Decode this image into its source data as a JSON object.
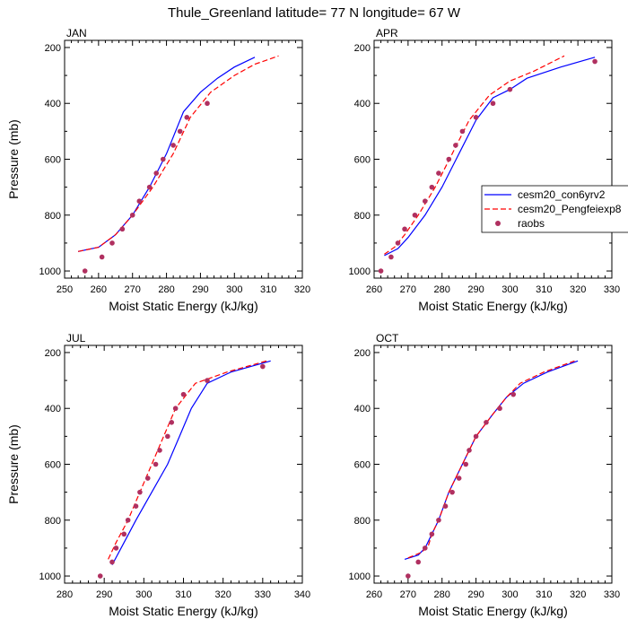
{
  "figure": {
    "title": "Thule_Greenland  latitude= 77 N longitude= 67 W",
    "xlabel": "Moist Static Energy (kJ/kg)",
    "ylabel": "Pressure (mb)"
  },
  "legend": {
    "placement": "right of APR panel",
    "entries": [
      {
        "label": "cesm20_con6yrv2",
        "style": "solid",
        "color": "#0000ff"
      },
      {
        "label": "cesm20_Pengfeiexp8",
        "style": "dashed",
        "color": "#ff0000"
      },
      {
        "label": "raobs",
        "style": "marker",
        "color": "#b03060"
      }
    ]
  },
  "colors": {
    "model1": "#0000ff",
    "model2": "#ff0000",
    "obs": "#b03060"
  },
  "chart_data": [
    {
      "type": "line",
      "panel_label": "JAN",
      "xlim": [
        250,
        320
      ],
      "xticks": [
        250,
        260,
        270,
        280,
        290,
        300,
        310,
        320
      ],
      "ylim": [
        1000,
        200
      ],
      "yticks": [
        200,
        400,
        600,
        800,
        1000
      ],
      "y_reversed": true,
      "series": [
        {
          "name": "cesm20_con6yrv2",
          "style": "solid",
          "points": [
            [
              254,
              930
            ],
            [
              260,
              915
            ],
            [
              265,
              870
            ],
            [
              270,
              800
            ],
            [
              275,
              700
            ],
            [
              280,
              580
            ],
            [
              285,
              430
            ],
            [
              290,
              360
            ],
            [
              295,
              310
            ],
            [
              300,
              270
            ],
            [
              306,
              235
            ]
          ]
        },
        {
          "name": "cesm20_Pengfeiexp8",
          "style": "dashed",
          "points": [
            [
              254,
              930
            ],
            [
              260,
              915
            ],
            [
              265,
              870
            ],
            [
              270,
              800
            ],
            [
              276,
              700
            ],
            [
              282,
              580
            ],
            [
              287,
              450
            ],
            [
              293,
              360
            ],
            [
              300,
              300
            ],
            [
              306,
              260
            ],
            [
              313,
              230
            ]
          ]
        },
        {
          "name": "raobs",
          "style": "marker",
          "points": [
            [
              256,
              1000
            ],
            [
              261,
              950
            ],
            [
              264,
              900
            ],
            [
              267,
              850
            ],
            [
              270,
              800
            ],
            [
              272,
              750
            ],
            [
              275,
              700
            ],
            [
              277,
              650
            ],
            [
              279,
              600
            ],
            [
              282,
              550
            ],
            [
              284,
              500
            ],
            [
              286,
              450
            ],
            [
              292,
              400
            ]
          ]
        }
      ]
    },
    {
      "type": "line",
      "panel_label": "APR",
      "xlim": [
        260,
        330
      ],
      "xticks": [
        260,
        270,
        280,
        290,
        300,
        310,
        320,
        330
      ],
      "ylim": [
        1000,
        200
      ],
      "yticks": [
        200,
        400,
        600,
        800,
        1000
      ],
      "y_reversed": true,
      "series": [
        {
          "name": "cesm20_con6yrv2",
          "style": "solid",
          "points": [
            [
              263,
              945
            ],
            [
              267,
              920
            ],
            [
              270,
              880
            ],
            [
              275,
              800
            ],
            [
              280,
              700
            ],
            [
              285,
              580
            ],
            [
              290,
              460
            ],
            [
              295,
              380
            ],
            [
              300,
              350
            ],
            [
              305,
              310
            ],
            [
              315,
              270
            ],
            [
              325,
              235
            ]
          ]
        },
        {
          "name": "cesm20_Pengfeiexp8",
          "style": "dashed",
          "points": [
            [
              263,
              940
            ],
            [
              266,
              915
            ],
            [
              269,
              870
            ],
            [
              273,
              800
            ],
            [
              278,
              700
            ],
            [
              283,
              580
            ],
            [
              288,
              460
            ],
            [
              294,
              370
            ],
            [
              300,
              320
            ],
            [
              307,
              285
            ],
            [
              316,
              230
            ]
          ]
        },
        {
          "name": "raobs",
          "style": "marker",
          "points": [
            [
              262,
              1000
            ],
            [
              265,
              950
            ],
            [
              267,
              900
            ],
            [
              269,
              850
            ],
            [
              272,
              800
            ],
            [
              275,
              750
            ],
            [
              277,
              700
            ],
            [
              279,
              650
            ],
            [
              282,
              600
            ],
            [
              284,
              550
            ],
            [
              286,
              500
            ],
            [
              290,
              450
            ],
            [
              295,
              400
            ],
            [
              300,
              350
            ],
            [
              325,
              250
            ]
          ]
        }
      ]
    },
    {
      "type": "line",
      "panel_label": "JUL",
      "xlim": [
        280,
        340
      ],
      "xticks": [
        280,
        290,
        300,
        310,
        320,
        330,
        340
      ],
      "ylim": [
        1000,
        200
      ],
      "yticks": [
        200,
        400,
        600,
        800,
        1000
      ],
      "y_reversed": true,
      "series": [
        {
          "name": "cesm20_con6yrv2",
          "style": "solid",
          "points": [
            [
              292,
              960
            ],
            [
              295,
              880
            ],
            [
              298,
              800
            ],
            [
              302,
              700
            ],
            [
              306,
              600
            ],
            [
              309,
              500
            ],
            [
              312,
              400
            ],
            [
              316,
              310
            ],
            [
              322,
              270
            ],
            [
              332,
              230
            ]
          ]
        },
        {
          "name": "cesm20_Pengfeiexp8",
          "style": "dashed",
          "points": [
            [
              291,
              940
            ],
            [
              293,
              880
            ],
            [
              296,
              800
            ],
            [
              299,
              700
            ],
            [
              302,
              600
            ],
            [
              305,
              500
            ],
            [
              308,
              400
            ],
            [
              313,
              310
            ],
            [
              321,
              270
            ],
            [
              331,
              230
            ]
          ]
        },
        {
          "name": "raobs",
          "style": "marker",
          "points": [
            [
              289,
              1000
            ],
            [
              292,
              950
            ],
            [
              293,
              900
            ],
            [
              295,
              850
            ],
            [
              296,
              800
            ],
            [
              298,
              750
            ],
            [
              299,
              700
            ],
            [
              301,
              650
            ],
            [
              303,
              600
            ],
            [
              304,
              550
            ],
            [
              306,
              500
            ],
            [
              307,
              450
            ],
            [
              308,
              400
            ],
            [
              310,
              350
            ],
            [
              316,
              300
            ],
            [
              330,
              250
            ]
          ]
        }
      ]
    },
    {
      "type": "line",
      "panel_label": "OCT",
      "xlim": [
        260,
        330
      ],
      "xticks": [
        260,
        270,
        280,
        290,
        300,
        310,
        320,
        330
      ],
      "ylim": [
        1000,
        200
      ],
      "yticks": [
        200,
        400,
        600,
        800,
        1000
      ],
      "y_reversed": true,
      "series": [
        {
          "name": "cesm20_con6yrv2",
          "style": "solid",
          "points": [
            [
              269,
              940
            ],
            [
              273,
              925
            ],
            [
              275,
              900
            ],
            [
              277,
              850
            ],
            [
              279,
              800
            ],
            [
              282,
              700
            ],
            [
              286,
              600
            ],
            [
              290,
              500
            ],
            [
              295,
              420
            ],
            [
              299,
              360
            ],
            [
              304,
              310
            ],
            [
              311,
              270
            ],
            [
              320,
              230
            ]
          ]
        },
        {
          "name": "cesm20_Pengfeiexp8",
          "style": "dashed",
          "points": [
            [
              270,
              935
            ],
            [
              274,
              915
            ],
            [
              276,
              890
            ],
            [
              277,
              850
            ],
            [
              279,
              800
            ],
            [
              282,
              700
            ],
            [
              286,
              600
            ],
            [
              290,
              500
            ],
            [
              295,
              420
            ],
            [
              299,
              360
            ],
            [
              303,
              310
            ],
            [
              310,
              270
            ],
            [
              319,
              230
            ]
          ]
        },
        {
          "name": "raobs",
          "style": "marker",
          "points": [
            [
              270,
              1000
            ],
            [
              273,
              950
            ],
            [
              275,
              900
            ],
            [
              277,
              850
            ],
            [
              279,
              800
            ],
            [
              281,
              750
            ],
            [
              283,
              700
            ],
            [
              285,
              650
            ],
            [
              287,
              600
            ],
            [
              288,
              550
            ],
            [
              290,
              500
            ],
            [
              293,
              450
            ],
            [
              297,
              400
            ],
            [
              301,
              350
            ]
          ]
        }
      ]
    }
  ]
}
